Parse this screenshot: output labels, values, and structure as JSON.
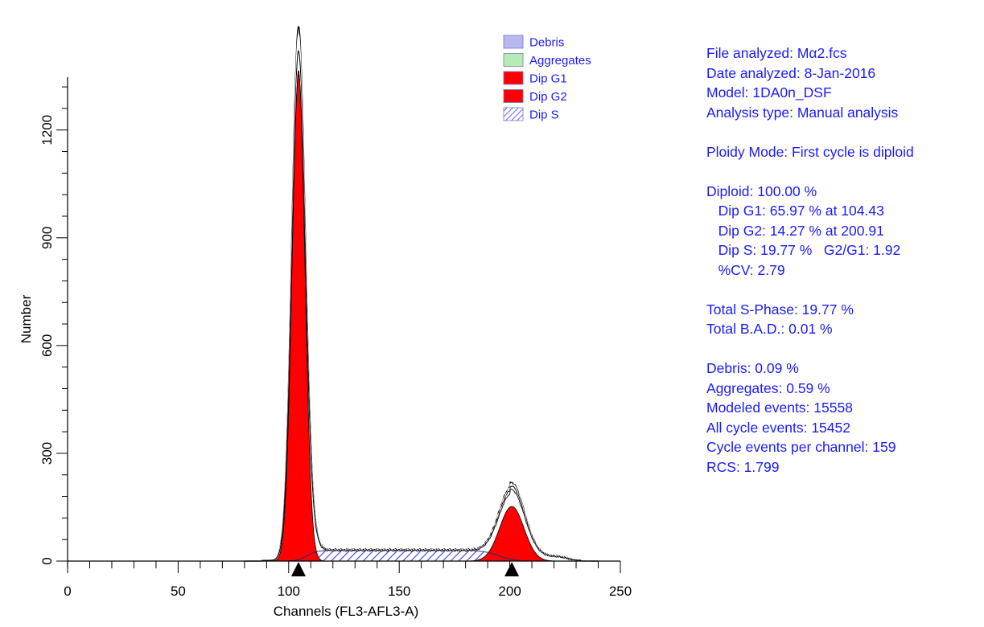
{
  "chart_data": {
    "type": "area",
    "xlabel": "Channels (FL3-AFL3-A)",
    "ylabel": "Number",
    "xlim": [
      0,
      250
    ],
    "ylim": [
      0,
      1450
    ],
    "x_ticks": [
      0,
      50,
      100,
      150,
      200,
      250
    ],
    "y_ticks": [
      0,
      300,
      600,
      900,
      1200
    ],
    "grid": false,
    "legend_position": "top-right",
    "legend": [
      {
        "name": "Debris",
        "color": "#b8b8f0"
      },
      {
        "name": "Aggregates",
        "color": "#b4ecb4"
      },
      {
        "name": "Dip G1",
        "color": "#ff0000"
      },
      {
        "name": "Dip G2",
        "color": "#ff0000"
      },
      {
        "name": "Dip S",
        "color": "#1a1aff",
        "pattern": "diagonal-hatch"
      }
    ],
    "peak_markers": [
      104.43,
      200.91
    ],
    "series": [
      {
        "name": "Dip G1",
        "model": "gaussian",
        "mean": 104.43,
        "peak": 1365,
        "sd": 2.9
      },
      {
        "name": "Dip G2",
        "model": "gaussian",
        "mean": 200.91,
        "peak": 152,
        "sd": 5.5
      },
      {
        "name": "Dip S",
        "model": "plateau",
        "from": 104.43,
        "to": 200.91,
        "level": 30
      }
    ],
    "histogram": {
      "peak_g1": 1475,
      "peak_g2": 200,
      "tail_end": 230
    }
  },
  "stats": {
    "lines": [
      "File analyzed: Mα2.fcs",
      "Date analyzed: 8-Jan-2016",
      "Model: 1DA0n_DSF",
      "Analysis type: Manual analysis",
      "",
      "Ploidy Mode: First cycle is diploid",
      "",
      "Diploid: 100.00 %",
      "   Dip G1: 65.97 % at 104.43",
      "   Dip G2: 14.27 % at 200.91",
      "   Dip S: 19.77 %   G2/G1: 1.92",
      "   %CV: 2.79",
      "",
      "Total S-Phase: 19.77 %",
      "Total B.A.D.: 0.01 %",
      "",
      "Debris: 0.09 %",
      "Aggregates: 0.59 %",
      "Modeled events: 15558",
      "All cycle events: 15452",
      "Cycle events per channel: 159",
      "RCS: 1.799"
    ]
  }
}
